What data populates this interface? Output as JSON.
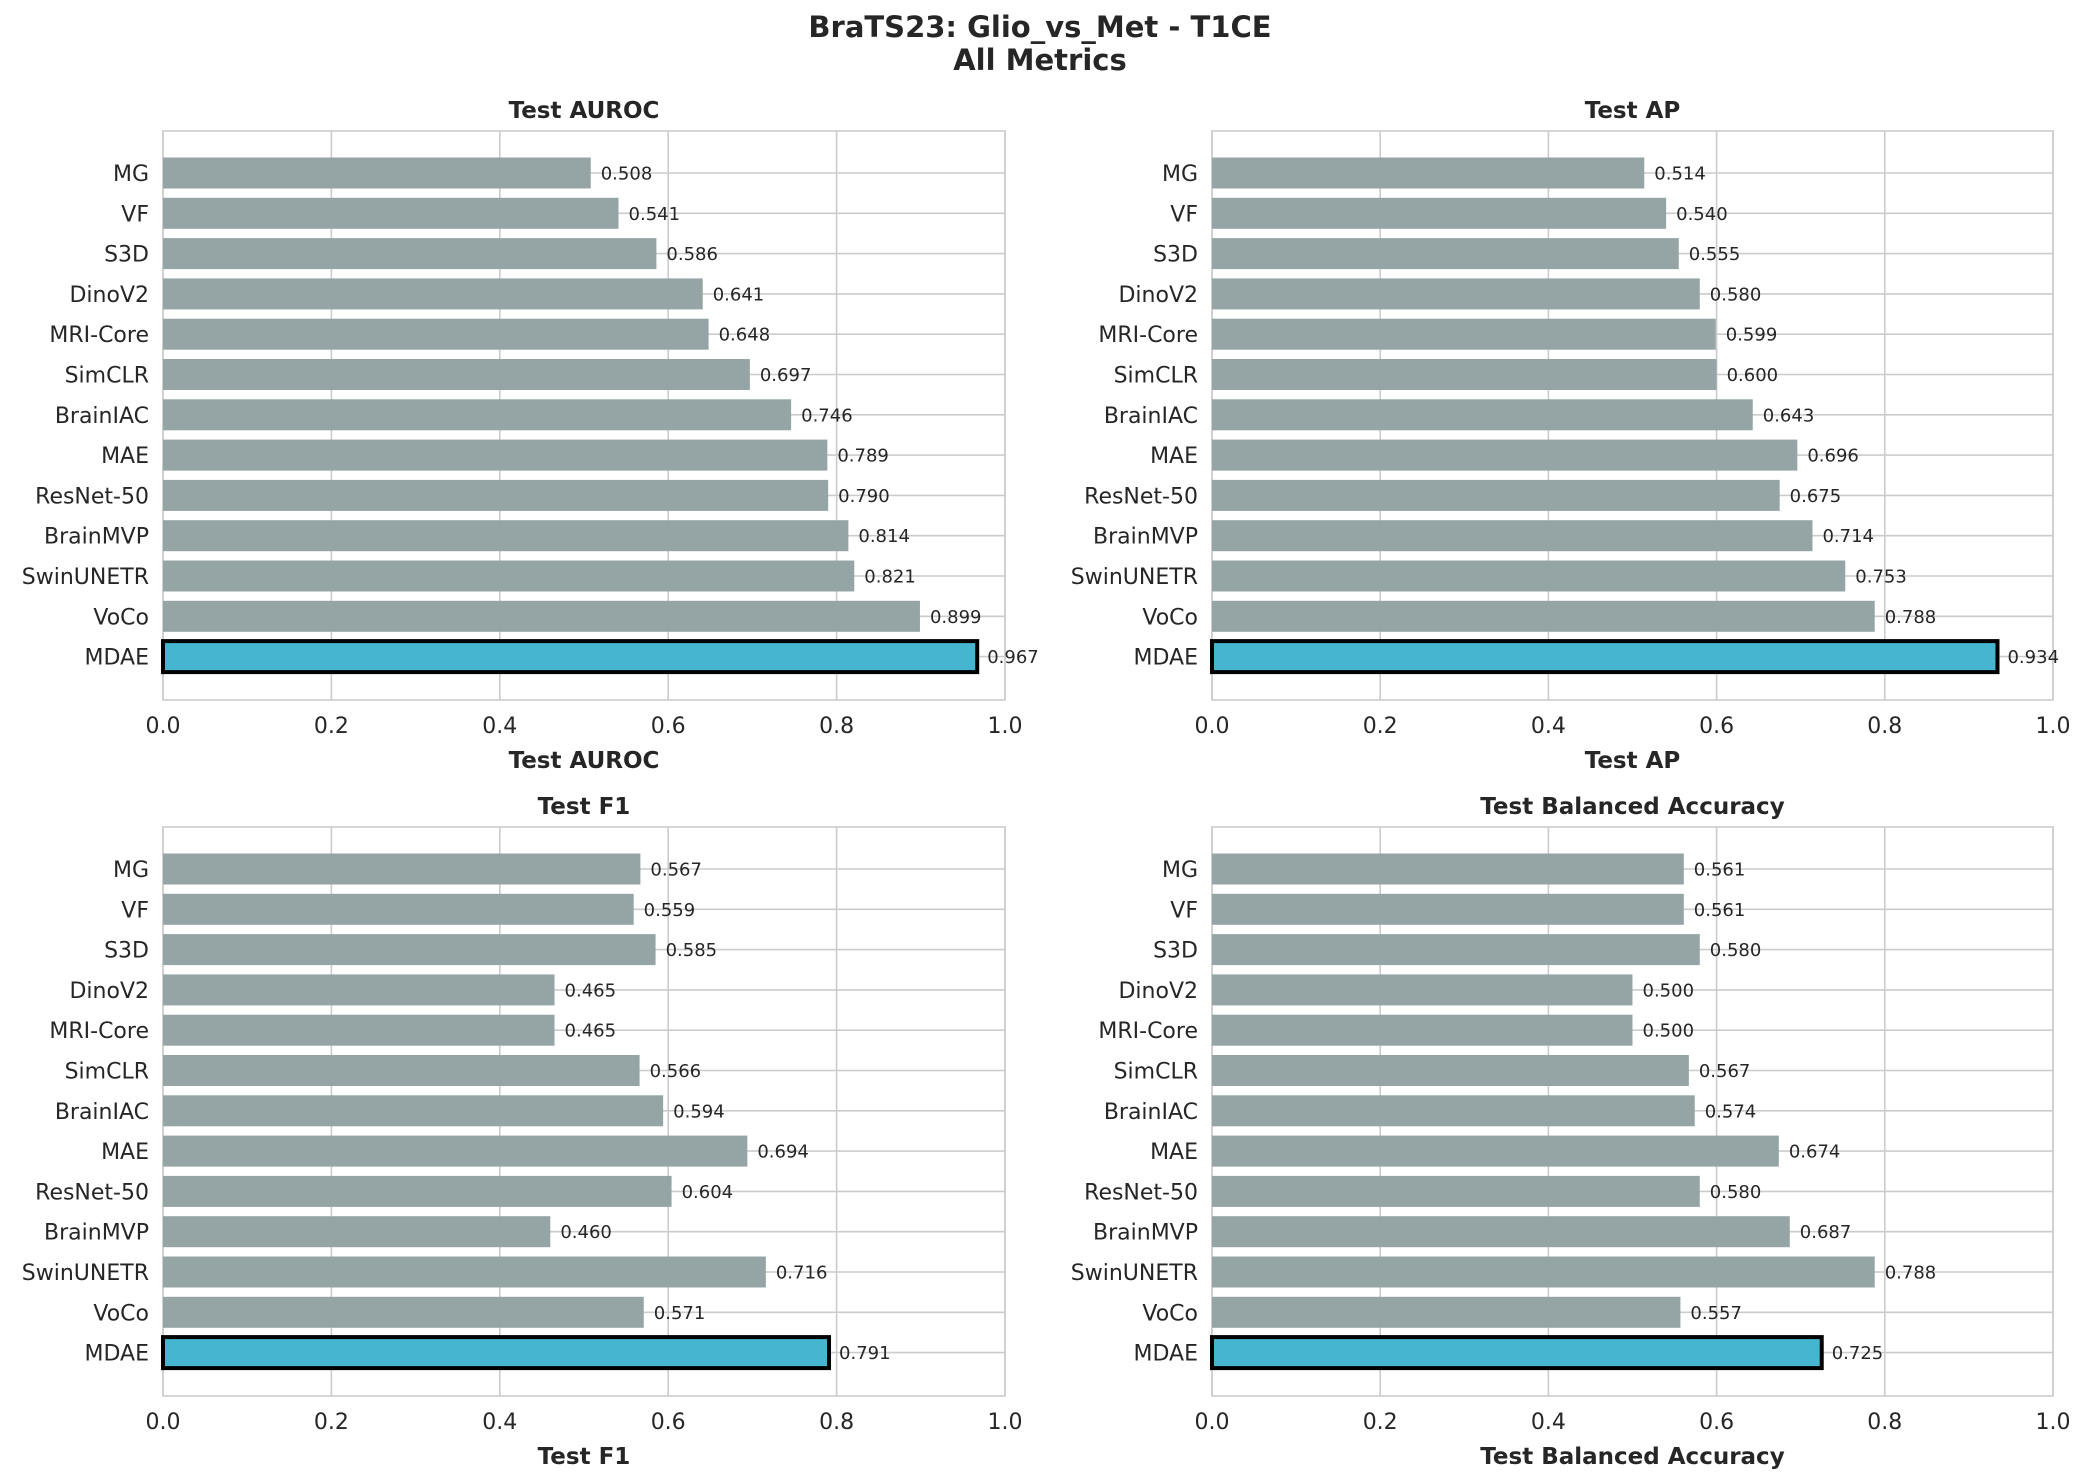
{
  "figure": {
    "title_line1": "BraTS23: Glio_vs_Met - T1CE",
    "title_line2": "All Metrics"
  },
  "colors": {
    "bar": "#95a5a6",
    "highlight": "#45b5d0",
    "highlight_edge": "#000000",
    "grid": "#cccccc",
    "text": "#262626"
  },
  "chart_data": [
    {
      "type": "bar",
      "orientation": "horizontal",
      "title": "Test AUROC",
      "xlabel": "Test AUROC",
      "xlim": [
        0.0,
        1.0
      ],
      "xticks": [
        "0.0",
        "0.2",
        "0.4",
        "0.6",
        "0.8",
        "1.0"
      ],
      "grid": true,
      "highlight": "MDAE",
      "categories": [
        "MG",
        "VF",
        "S3D",
        "DinoV2",
        "MRI-Core",
        "SimCLR",
        "BrainIAC",
        "MAE",
        "ResNet-50",
        "BrainMVP",
        "SwinUNETR",
        "VoCo",
        "MDAE"
      ],
      "values": [
        0.508,
        0.541,
        0.586,
        0.641,
        0.648,
        0.697,
        0.746,
        0.789,
        0.79,
        0.814,
        0.821,
        0.899,
        0.967
      ],
      "labels": [
        "0.508",
        "0.541",
        "0.586",
        "0.641",
        "0.648",
        "0.697",
        "0.746",
        "0.789",
        "0.790",
        "0.814",
        "0.821",
        "0.899",
        "0.967"
      ]
    },
    {
      "type": "bar",
      "orientation": "horizontal",
      "title": "Test AP",
      "xlabel": "Test AP",
      "xlim": [
        0.0,
        1.0
      ],
      "xticks": [
        "0.0",
        "0.2",
        "0.4",
        "0.6",
        "0.8",
        "1.0"
      ],
      "grid": true,
      "highlight": "MDAE",
      "categories": [
        "MG",
        "VF",
        "S3D",
        "DinoV2",
        "MRI-Core",
        "SimCLR",
        "BrainIAC",
        "MAE",
        "ResNet-50",
        "BrainMVP",
        "SwinUNETR",
        "VoCo",
        "MDAE"
      ],
      "values": [
        0.514,
        0.54,
        0.555,
        0.58,
        0.599,
        0.6,
        0.643,
        0.696,
        0.675,
        0.714,
        0.753,
        0.788,
        0.934
      ],
      "labels": [
        "0.514",
        "0.540",
        "0.555",
        "0.580",
        "0.599",
        "0.600",
        "0.643",
        "0.696",
        "0.675",
        "0.714",
        "0.753",
        "0.788",
        "0.934"
      ]
    },
    {
      "type": "bar",
      "orientation": "horizontal",
      "title": "Test F1",
      "xlabel": "Test F1",
      "xlim": [
        0.0,
        1.0
      ],
      "xticks": [
        "0.0",
        "0.2",
        "0.4",
        "0.6",
        "0.8",
        "1.0"
      ],
      "grid": true,
      "highlight": "MDAE",
      "categories": [
        "MG",
        "VF",
        "S3D",
        "DinoV2",
        "MRI-Core",
        "SimCLR",
        "BrainIAC",
        "MAE",
        "ResNet-50",
        "BrainMVP",
        "SwinUNETR",
        "VoCo",
        "MDAE"
      ],
      "values": [
        0.567,
        0.559,
        0.585,
        0.465,
        0.465,
        0.566,
        0.594,
        0.694,
        0.604,
        0.46,
        0.716,
        0.571,
        0.791
      ],
      "labels": [
        "0.567",
        "0.559",
        "0.585",
        "0.465",
        "0.465",
        "0.566",
        "0.594",
        "0.694",
        "0.604",
        "0.460",
        "0.716",
        "0.571",
        "0.791"
      ]
    },
    {
      "type": "bar",
      "orientation": "horizontal",
      "title": "Test Balanced Accuracy",
      "xlabel": "Test Balanced Accuracy",
      "xlim": [
        0.0,
        1.0
      ],
      "xticks": [
        "0.0",
        "0.2",
        "0.4",
        "0.6",
        "0.8",
        "1.0"
      ],
      "grid": true,
      "highlight": "MDAE",
      "categories": [
        "MG",
        "VF",
        "S3D",
        "DinoV2",
        "MRI-Core",
        "SimCLR",
        "BrainIAC",
        "MAE",
        "ResNet-50",
        "BrainMVP",
        "SwinUNETR",
        "VoCo",
        "MDAE"
      ],
      "values": [
        0.561,
        0.561,
        0.58,
        0.5,
        0.5,
        0.567,
        0.574,
        0.674,
        0.58,
        0.687,
        0.788,
        0.557,
        0.725
      ],
      "labels": [
        "0.561",
        "0.561",
        "0.580",
        "0.500",
        "0.500",
        "0.567",
        "0.574",
        "0.674",
        "0.580",
        "0.687",
        "0.788",
        "0.557",
        "0.725"
      ]
    }
  ]
}
